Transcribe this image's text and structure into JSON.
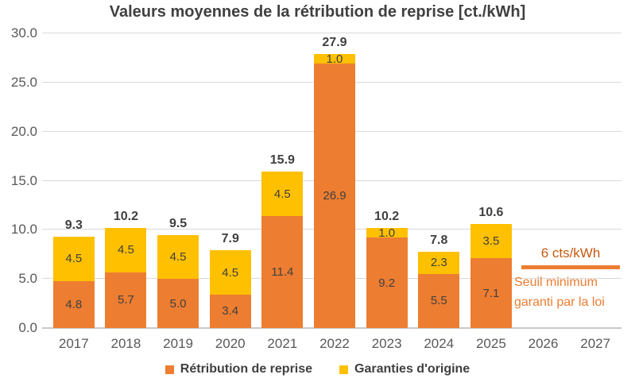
{
  "chart_data": {
    "type": "bar",
    "stacked": true,
    "title": "Valeurs moyennes de la rétribution de reprise [ct./kWh]",
    "categories": [
      "2017",
      "2018",
      "2019",
      "2020",
      "2021",
      "2022",
      "2023",
      "2024",
      "2025",
      "2026",
      "2027"
    ],
    "series": [
      {
        "name": "Rétribution de reprise",
        "color": "#ED7D31",
        "values": [
          4.8,
          5.7,
          5.0,
          3.4,
          11.4,
          26.9,
          9.2,
          5.5,
          7.1,
          null,
          null
        ]
      },
      {
        "name": "Garanties d'origine",
        "color": "#FFC000",
        "values": [
          4.5,
          4.5,
          4.5,
          4.5,
          4.5,
          1.0,
          1.0,
          2.3,
          3.5,
          null,
          null
        ]
      }
    ],
    "totals": [
      9.3,
      10.2,
      9.5,
      7.9,
      15.9,
      27.9,
      10.2,
      7.8,
      10.6,
      null,
      null
    ],
    "ylim": [
      0,
      30
    ],
    "ytick_step": 5,
    "ytick_labels": [
      "0.0",
      "5.0",
      "10.0",
      "15.0",
      "20.0",
      "25.0",
      "30.0"
    ],
    "grid": true,
    "legend_position": "bottom",
    "annotation": {
      "label": "6 cts/kWh",
      "line_value": 6,
      "line_color": "#ED7D31",
      "label_color": "#C55A11",
      "text_color": "#ED7D31",
      "text_line1": "Seuil minimum",
      "text_line2": "garanti par la loi"
    }
  },
  "styles": {
    "title_color": "#404040",
    "axis_label_color": "#595959",
    "value_label_color": "#404040",
    "gridline_color": "#D9D9D9"
  }
}
